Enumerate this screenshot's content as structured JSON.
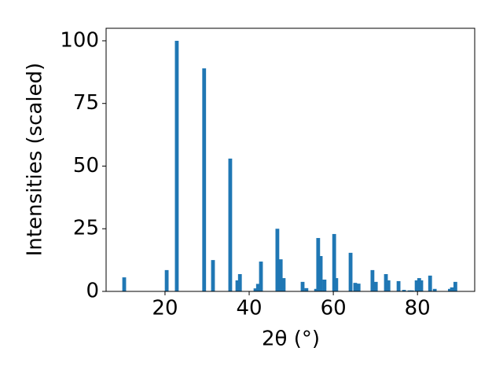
{
  "chart_data": {
    "type": "bar",
    "xlabel": "2θ (°)",
    "ylabel": "Intensities (scaled)",
    "x": [
      10.3,
      20.4,
      22.8,
      29.3,
      31.4,
      35.5,
      37.2,
      37.8,
      41.5,
      42.1,
      42.8,
      46.7,
      47.5,
      48.2,
      52.7,
      53.6,
      55.9,
      56.4,
      57.0,
      57.9,
      60.2,
      60.7,
      64.1,
      65.2,
      66.0,
      69.3,
      70.1,
      72.5,
      73.1,
      75.5,
      76.8,
      78.1,
      78.7,
      79.8,
      80.4,
      80.9,
      83.0,
      84.1,
      87.7,
      88.2,
      89.0
    ],
    "values": [
      5.6,
      8.5,
      100,
      89,
      12.5,
      53,
      4.4,
      6.9,
      1.2,
      3,
      11.9,
      25,
      12.8,
      5.3,
      3.8,
      1.3,
      1,
      21.3,
      14.1,
      4.7,
      22.9,
      5.3,
      15.4,
      3.4,
      3.1,
      8.5,
      3.8,
      6.9,
      4.4,
      4.1,
      0.6,
      0.4,
      0.4,
      4.4,
      5.3,
      4.4,
      6.3,
      1,
      1,
      1.6,
      3.8
    ],
    "color": "#1f77b4",
    "xlim": [
      6,
      93.6
    ],
    "ylim": [
      0,
      105
    ],
    "xticks": [
      20,
      40,
      60,
      80
    ],
    "yticks": [
      0,
      25,
      50,
      75,
      100
    ]
  }
}
